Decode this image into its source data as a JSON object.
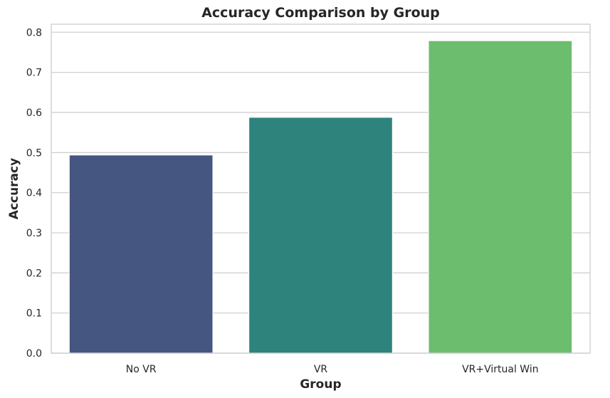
{
  "chart_data": {
    "type": "bar",
    "title": "Accuracy Comparison by Group",
    "xlabel": "Group",
    "ylabel": "Accuracy",
    "categories": [
      "No VR",
      "VR",
      "VR+Virtual Win"
    ],
    "values": [
      0.494,
      0.588,
      0.779
    ],
    "colors": [
      "#455681",
      "#2f837d",
      "#6dbd6e"
    ],
    "ylim": [
      0,
      0.82
    ],
    "yticks": [
      0.0,
      0.1,
      0.2,
      0.3,
      0.4,
      0.5,
      0.6,
      0.7,
      0.8
    ],
    "ytick_labels": [
      "0.0",
      "0.1",
      "0.2",
      "0.3",
      "0.4",
      "0.5",
      "0.6",
      "0.7",
      "0.8"
    ],
    "grid": "horizontal",
    "legend": "none"
  }
}
